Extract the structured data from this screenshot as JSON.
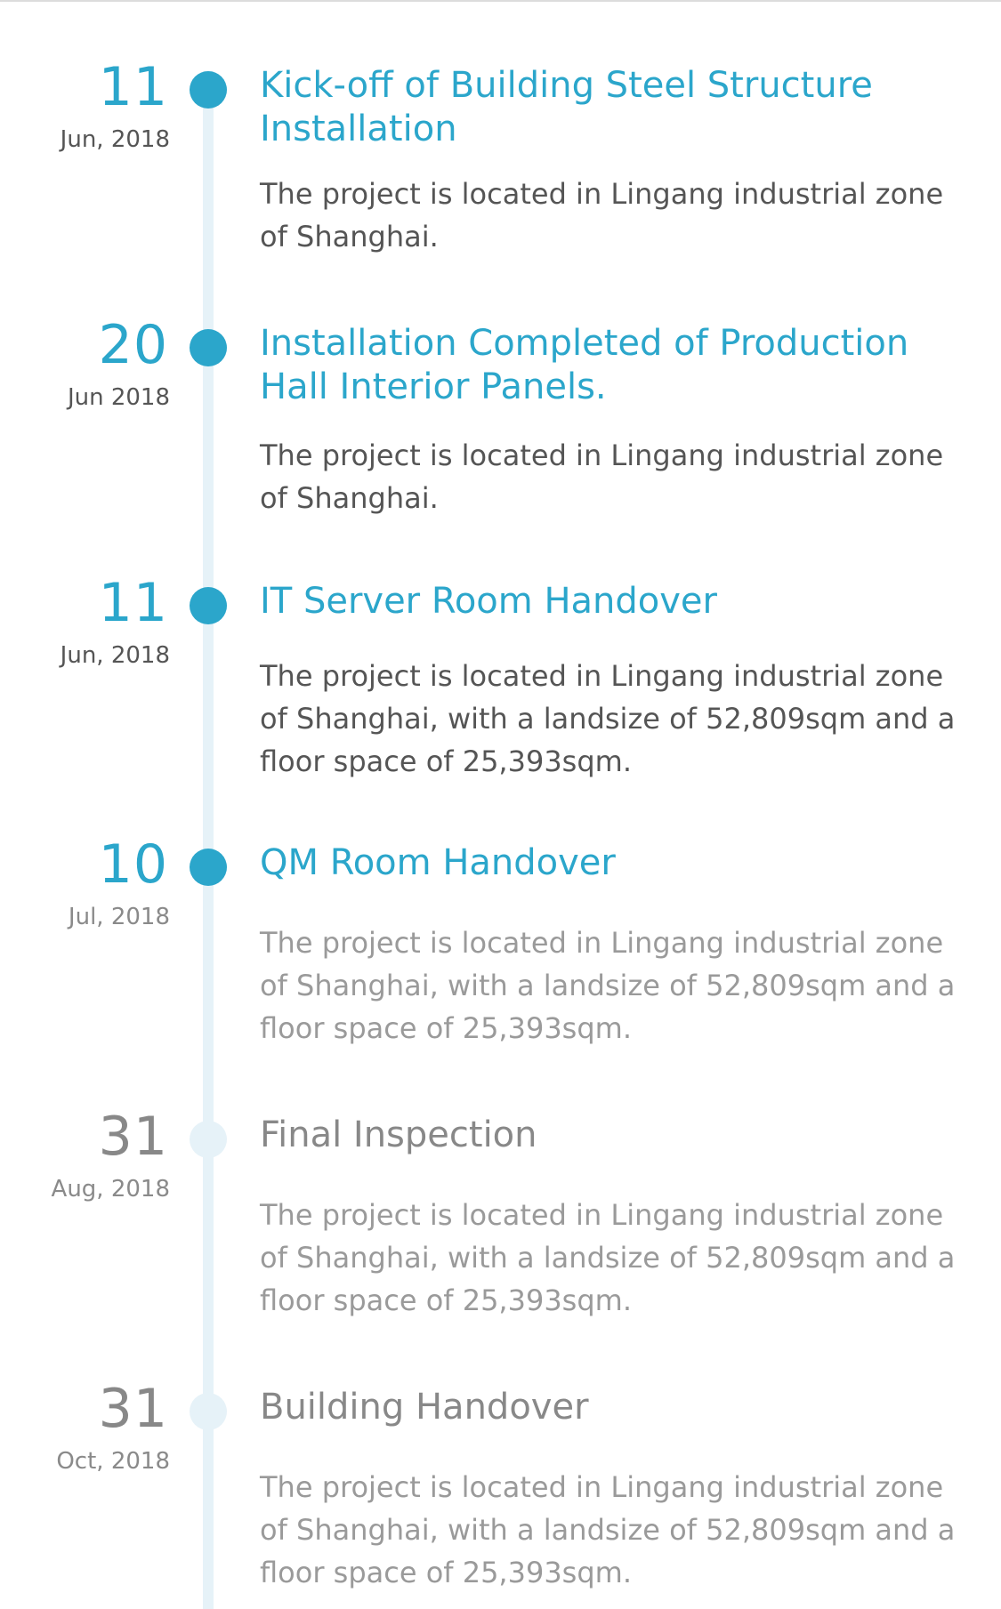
{
  "timeline": {
    "accent_color": "#2ba6cb",
    "muted_color": "#888888",
    "rail_color": "#e6f2f8",
    "events": [
      {
        "day": "11",
        "month": "Jun, 2018",
        "title": "Kick-off of Building Steel Structure Installation",
        "description": "The project is located in Lingang industrial zone of Shanghai."
      },
      {
        "day": "20",
        "month": "Jun 2018",
        "title": "Installation Completed of Production Hall Interior Panels.",
        "description": "The project is located in Lingang industrial zone of Shanghai."
      },
      {
        "day": "11",
        "month": "Jun, 2018",
        "title": "IT Server Room Handover",
        "description": "The project is located in Lingang industrial zone of Shanghai, with a landsize of 52,809sqm and a floor space of 25,393sqm."
      },
      {
        "day": "10",
        "month": "Jul, 2018",
        "title": "QM Room Handover",
        "description": "The project is located in Lingang industrial zone of Shanghai, with a landsize of 52,809sqm and a floor space of 25,393sqm."
      },
      {
        "day": "31",
        "month": "Aug, 2018",
        "title": "Final Inspection",
        "description": "The project is located in Lingang industrial zone of Shanghai, with a landsize of 52,809sqm and a floor space of 25,393sqm."
      },
      {
        "day": "31",
        "month": "Oct, 2018",
        "title": "Building Handover",
        "description": "The project is located in Lingang industrial zone of Shanghai, with a landsize of 52,809sqm and a floor space of 25,393sqm."
      }
    ]
  }
}
